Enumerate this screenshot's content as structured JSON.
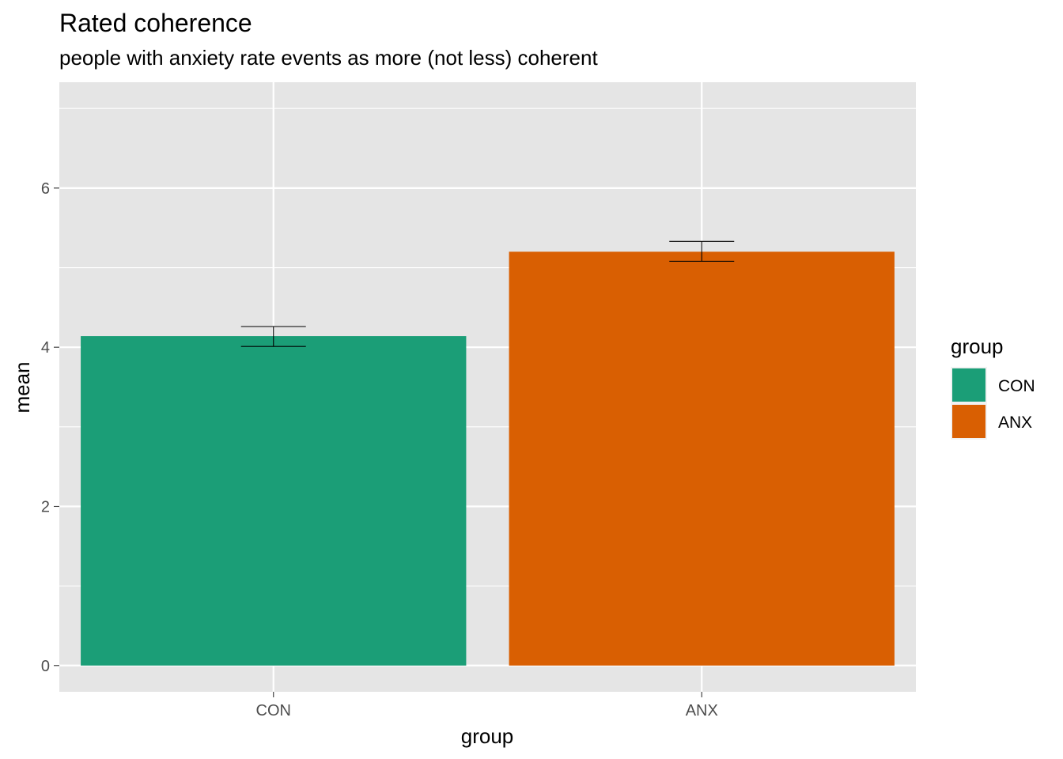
{
  "chart_data": {
    "type": "bar",
    "title": "Rated coherence",
    "subtitle": "people with anxiety rate events as more (not less) coherent",
    "xlabel": "group",
    "ylabel": "mean",
    "categories": [
      "CON",
      "ANX"
    ],
    "values": [
      4.14,
      5.2
    ],
    "error_bars": [
      {
        "low": 4.01,
        "high": 4.26
      },
      {
        "low": 5.08,
        "high": 5.33
      }
    ],
    "colors": [
      "#1b9e77",
      "#d95f02"
    ],
    "yticks": [
      0,
      2,
      4,
      6
    ],
    "ylim": [
      -0.33,
      7.33
    ],
    "grid": true,
    "legend": {
      "title": "group",
      "position": "right",
      "entries": [
        "CON",
        "ANX"
      ]
    }
  }
}
